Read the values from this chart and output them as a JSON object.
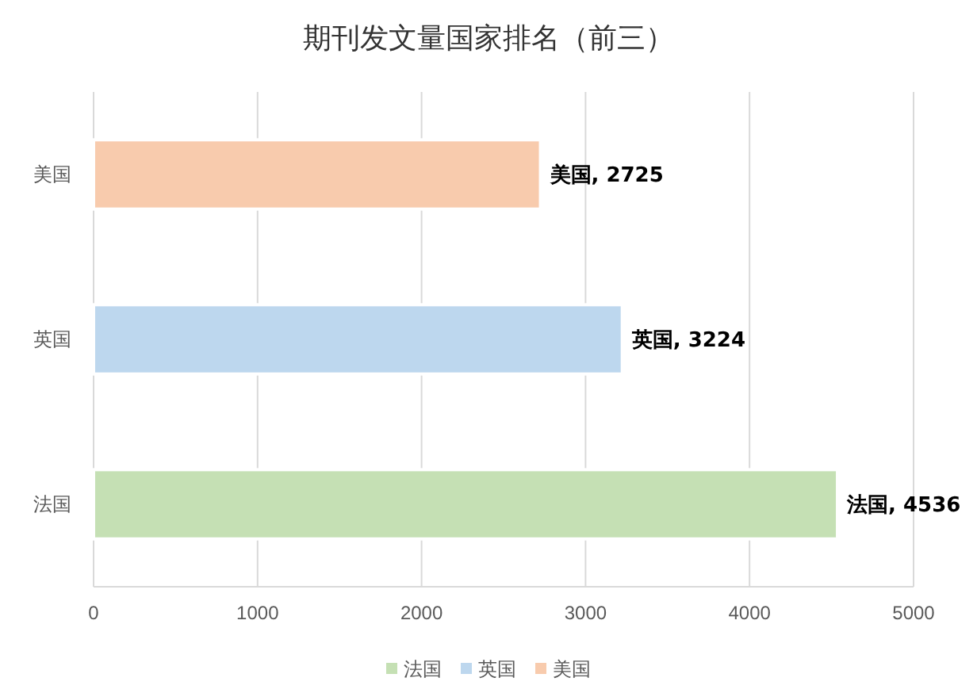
{
  "chart_data": {
    "type": "bar",
    "orientation": "horizontal",
    "stacked": true,
    "title": "期刊发文量国家排名（前三）",
    "categories": [
      "美国",
      "英国",
      "法国"
    ],
    "series": [
      {
        "name": "法国",
        "color": "#c5e0b4",
        "values": [
          null,
          null,
          4536
        ],
        "value_labels": [
          null,
          null,
          "法国, 4536"
        ]
      },
      {
        "name": "英国",
        "color": "#bdd7ee",
        "values": [
          null,
          3224,
          null
        ],
        "value_labels": [
          null,
          "英国, 3224",
          null
        ]
      },
      {
        "name": "美国",
        "color": "#f8cbad",
        "values": [
          2725,
          null,
          null
        ],
        "value_labels": [
          "美国, 2725",
          null,
          null
        ]
      }
    ],
    "xlim": [
      0,
      5000
    ],
    "xticks": [
      0,
      1000,
      2000,
      3000,
      4000,
      5000
    ],
    "grid": "x",
    "legend": "bottom"
  }
}
